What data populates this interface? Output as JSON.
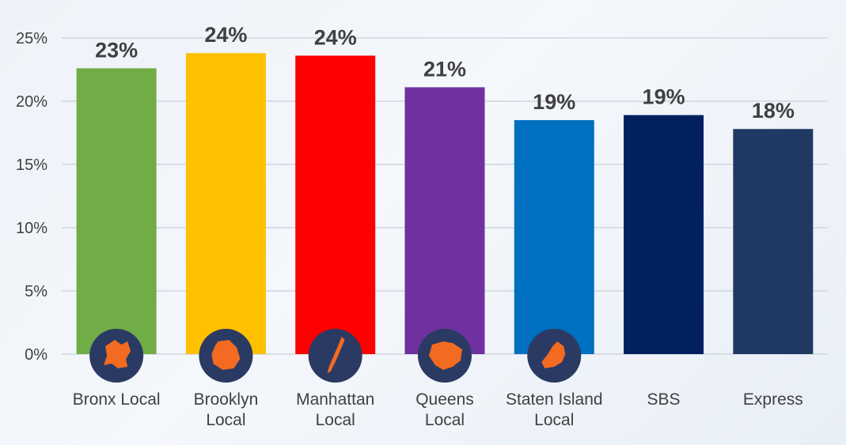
{
  "chart_data": {
    "type": "bar",
    "categories": [
      [
        "Bronx Local"
      ],
      [
        "Brooklyn",
        "Local"
      ],
      [
        "Manhattan",
        "Local"
      ],
      [
        "Queens",
        "Local"
      ],
      [
        "Staten Island",
        "Local"
      ],
      [
        "SBS"
      ],
      [
        "Express"
      ]
    ],
    "values": [
      22.6,
      23.8,
      23.6,
      21.1,
      18.5,
      18.9,
      17.8
    ],
    "data_labels": [
      "23%",
      "24%",
      "24%",
      "21%",
      "19%",
      "19%",
      "18%"
    ],
    "colors": [
      "#70ad47",
      "#ffc000",
      "#ff0000",
      "#7030a0",
      "#0070c0",
      "#002060",
      "#203864"
    ],
    "borough_icons": [
      "bronx-icon",
      "brooklyn-icon",
      "manhattan-icon",
      "queens-icon",
      "staten-island-icon",
      null,
      null
    ],
    "icon_colors": {
      "circle": "#2b3a63",
      "shape": "#f26b21"
    },
    "y_ticks": [
      "0%",
      "5%",
      "10%",
      "15%",
      "20%",
      "25%"
    ],
    "ylim": [
      0,
      25
    ],
    "grid": true,
    "title": "",
    "xlabel": "",
    "ylabel": ""
  }
}
